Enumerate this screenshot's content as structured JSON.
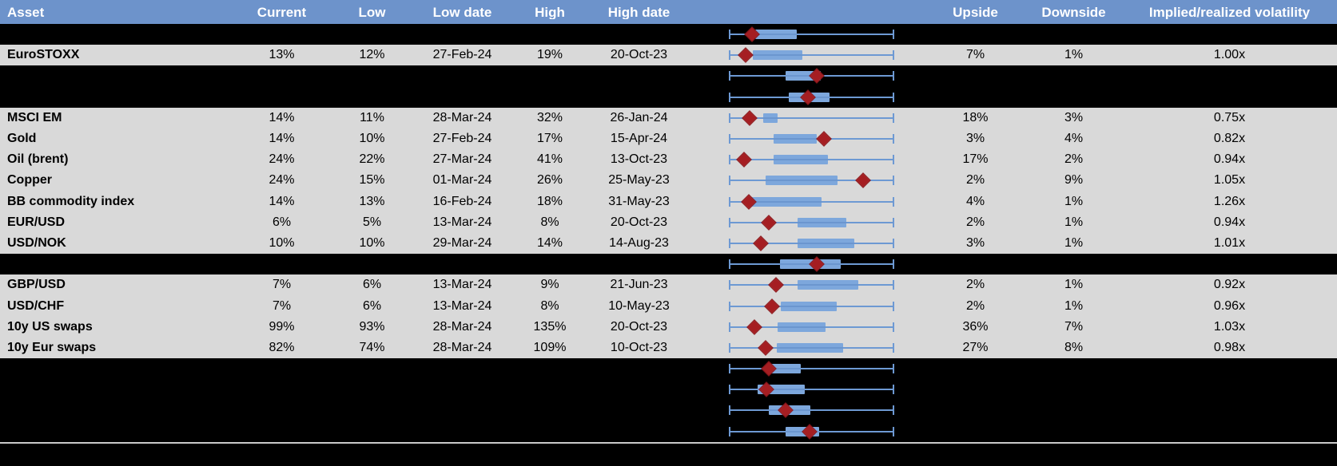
{
  "header": {
    "columns": [
      "Asset",
      "Current",
      "Low",
      "Low date",
      "High",
      "High date",
      "Upside",
      "Downside",
      "Implied/realized volatility"
    ]
  },
  "colors": {
    "header_bg": "#6d93cb",
    "header_text": "#ffffff",
    "row_gray": "#d9d9d9",
    "row_black": "#000000",
    "whisker_blue": "#6d99d3",
    "box_blue": "#7da7dc",
    "marker_red": "#a51e22",
    "separator_gray": "#c9c9c9",
    "body_text": "#000000"
  },
  "chart_data": {
    "type": "table",
    "title": "Implied volatility ranges by asset with box-and-whisker plots",
    "layout_note": "Each row has a horizontal box plot: whiskers span the 1y low-high range (normalized 0-100%), blue box is the interquartile range, red diamond is the current level.",
    "boxplot_axis": {
      "min_pct": 0,
      "max_pct": 100,
      "grid": false,
      "legend": false
    },
    "rows": [
      {
        "kind": "chart",
        "box_low_pct": 15.6,
        "box_high_pct": 41.0,
        "marker_pct": 13.7
      },
      {
        "kind": "data",
        "asset": "EuroSTOXX",
        "current": "13%",
        "low": "12%",
        "low_date": "27-Feb-24",
        "high": "19%",
        "high_date": "20-Oct-23",
        "upside": "7%",
        "downside": "1%",
        "vol": "1.00x",
        "box_low_pct": 14.1,
        "box_high_pct": 44.4,
        "marker_pct": 9.8
      },
      {
        "kind": "chart",
        "box_low_pct": 34.1,
        "box_high_pct": 55.6,
        "marker_pct": 53.2
      },
      {
        "kind": "chart",
        "box_low_pct": 36.1,
        "box_high_pct": 61.0,
        "marker_pct": 47.8
      },
      {
        "kind": "data",
        "asset": "MSCI EM",
        "current": "14%",
        "low": "11%",
        "low_date": "28-Mar-24",
        "high": "32%",
        "high_date": "26-Jan-24",
        "upside": "18%",
        "downside": "3%",
        "vol": "0.75x",
        "box_low_pct": 20.5,
        "box_high_pct": 29.3,
        "marker_pct": 12.2
      },
      {
        "kind": "data",
        "asset": "Gold",
        "current": "14%",
        "low": "10%",
        "low_date": "27-Feb-24",
        "high": "17%",
        "high_date": "15-Apr-24",
        "upside": "3%",
        "downside": "4%",
        "vol": "0.82x",
        "box_low_pct": 26.8,
        "box_high_pct": 53.2,
        "marker_pct": 57.6
      },
      {
        "kind": "data",
        "asset": "Oil (brent)",
        "current": "24%",
        "low": "22%",
        "low_date": "27-Mar-24",
        "high": "41%",
        "high_date": "13-Oct-23",
        "upside": "17%",
        "downside": "2%",
        "vol": "0.94x",
        "box_low_pct": 26.8,
        "box_high_pct": 60.0,
        "marker_pct": 8.8
      },
      {
        "kind": "data",
        "asset": "Copper",
        "current": "24%",
        "low": "15%",
        "low_date": "01-Mar-24",
        "high": "26%",
        "high_date": "25-May-23",
        "upside": "2%",
        "downside": "9%",
        "vol": "1.05x",
        "box_low_pct": 22.0,
        "box_high_pct": 65.9,
        "marker_pct": 81.5
      },
      {
        "kind": "data",
        "asset": "BB commodity index",
        "current": "14%",
        "low": "13%",
        "low_date": "16-Feb-24",
        "high": "18%",
        "high_date": "31-May-23",
        "upside": "4%",
        "downside": "1%",
        "vol": "1.26x",
        "box_low_pct": 13.2,
        "box_high_pct": 56.1,
        "marker_pct": 11.7
      },
      {
        "kind": "data",
        "asset": "EUR/USD",
        "current": "6%",
        "low": "5%",
        "low_date": "13-Mar-24",
        "high": "8%",
        "high_date": "20-Oct-23",
        "upside": "2%",
        "downside": "1%",
        "vol": "0.94x",
        "box_low_pct": 41.5,
        "box_high_pct": 71.2,
        "marker_pct": 23.9
      },
      {
        "kind": "data",
        "asset": "USD/NOK",
        "current": "10%",
        "low": "10%",
        "low_date": "29-Mar-24",
        "high": "14%",
        "high_date": "14-Aug-23",
        "upside": "3%",
        "downside": "1%",
        "vol": "1.01x",
        "box_low_pct": 41.5,
        "box_high_pct": 76.1,
        "marker_pct": 19.0
      },
      {
        "kind": "chart",
        "box_low_pct": 30.7,
        "box_high_pct": 67.8,
        "marker_pct": 53.2
      },
      {
        "kind": "data",
        "asset": "GBP/USD",
        "current": "7%",
        "low": "6%",
        "low_date": "13-Mar-24",
        "high": "9%",
        "high_date": "21-Jun-23",
        "upside": "2%",
        "downside": "1%",
        "vol": "0.92x",
        "box_low_pct": 41.5,
        "box_high_pct": 78.5,
        "marker_pct": 28.3
      },
      {
        "kind": "data",
        "asset": "USD/CHF",
        "current": "7%",
        "low": "6%",
        "low_date": "13-Mar-24",
        "high": "8%",
        "high_date": "10-May-23",
        "upside": "2%",
        "downside": "1%",
        "vol": "0.96x",
        "box_low_pct": 31.2,
        "box_high_pct": 65.4,
        "marker_pct": 25.9
      },
      {
        "kind": "data",
        "asset": "10y US swaps",
        "current": "99%",
        "low": "93%",
        "low_date": "28-Mar-24",
        "high": "135%",
        "high_date": "20-Oct-23",
        "upside": "36%",
        "downside": "7%",
        "vol": "1.03x",
        "box_low_pct": 29.3,
        "box_high_pct": 58.5,
        "marker_pct": 15.1
      },
      {
        "kind": "data",
        "asset": "10y Eur swaps",
        "current": "82%",
        "low": "74%",
        "low_date": "28-Mar-24",
        "high": "109%",
        "high_date": "10-Oct-23",
        "upside": "27%",
        "downside": "8%",
        "vol": "0.98x",
        "box_low_pct": 28.8,
        "box_high_pct": 69.3,
        "marker_pct": 22.0
      },
      {
        "kind": "chart",
        "box_low_pct": 24.4,
        "box_high_pct": 43.4,
        "marker_pct": 23.9
      },
      {
        "kind": "chart",
        "box_low_pct": 17.1,
        "box_high_pct": 45.9,
        "marker_pct": 22.4
      },
      {
        "kind": "chart",
        "box_low_pct": 23.9,
        "box_high_pct": 49.3,
        "marker_pct": 34.1
      },
      {
        "kind": "chart",
        "box_low_pct": 34.1,
        "box_high_pct": 54.6,
        "marker_pct": 48.8
      }
    ]
  }
}
